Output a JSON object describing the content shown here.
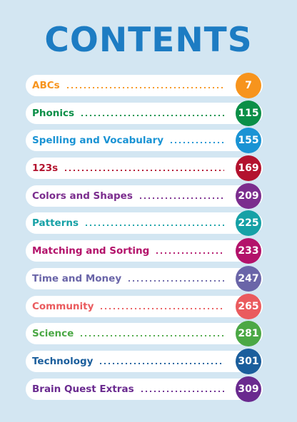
{
  "title": "CONTENTS",
  "entries": [
    {
      "label": "ABCs",
      "page": "7",
      "color": "#f7941d"
    },
    {
      "label": "Phonics",
      "page": "115",
      "color": "#0a8f47"
    },
    {
      "label": "Spelling and Vocabulary",
      "page": "155",
      "color": "#1a93d4"
    },
    {
      "label": "123s",
      "page": "169",
      "color": "#b3122e"
    },
    {
      "label": "Colors and Shapes",
      "page": "209",
      "color": "#7b2d8e"
    },
    {
      "label": "Patterns",
      "page": "225",
      "color": "#16a1a6"
    },
    {
      "label": "Matching and Sorting",
      "page": "233",
      "color": "#b3126a"
    },
    {
      "label": "Time and Money",
      "page": "247",
      "color": "#6a65a8"
    },
    {
      "label": "Community",
      "page": "265",
      "color": "#ea5b5e"
    },
    {
      "label": "Science",
      "page": "281",
      "color": "#4ba845"
    },
    {
      "label": "Technology",
      "page": "301",
      "color": "#1b5e9c"
    },
    {
      "label": "Brain Quest Extras",
      "page": "309",
      "color": "#6a2a8f"
    }
  ]
}
